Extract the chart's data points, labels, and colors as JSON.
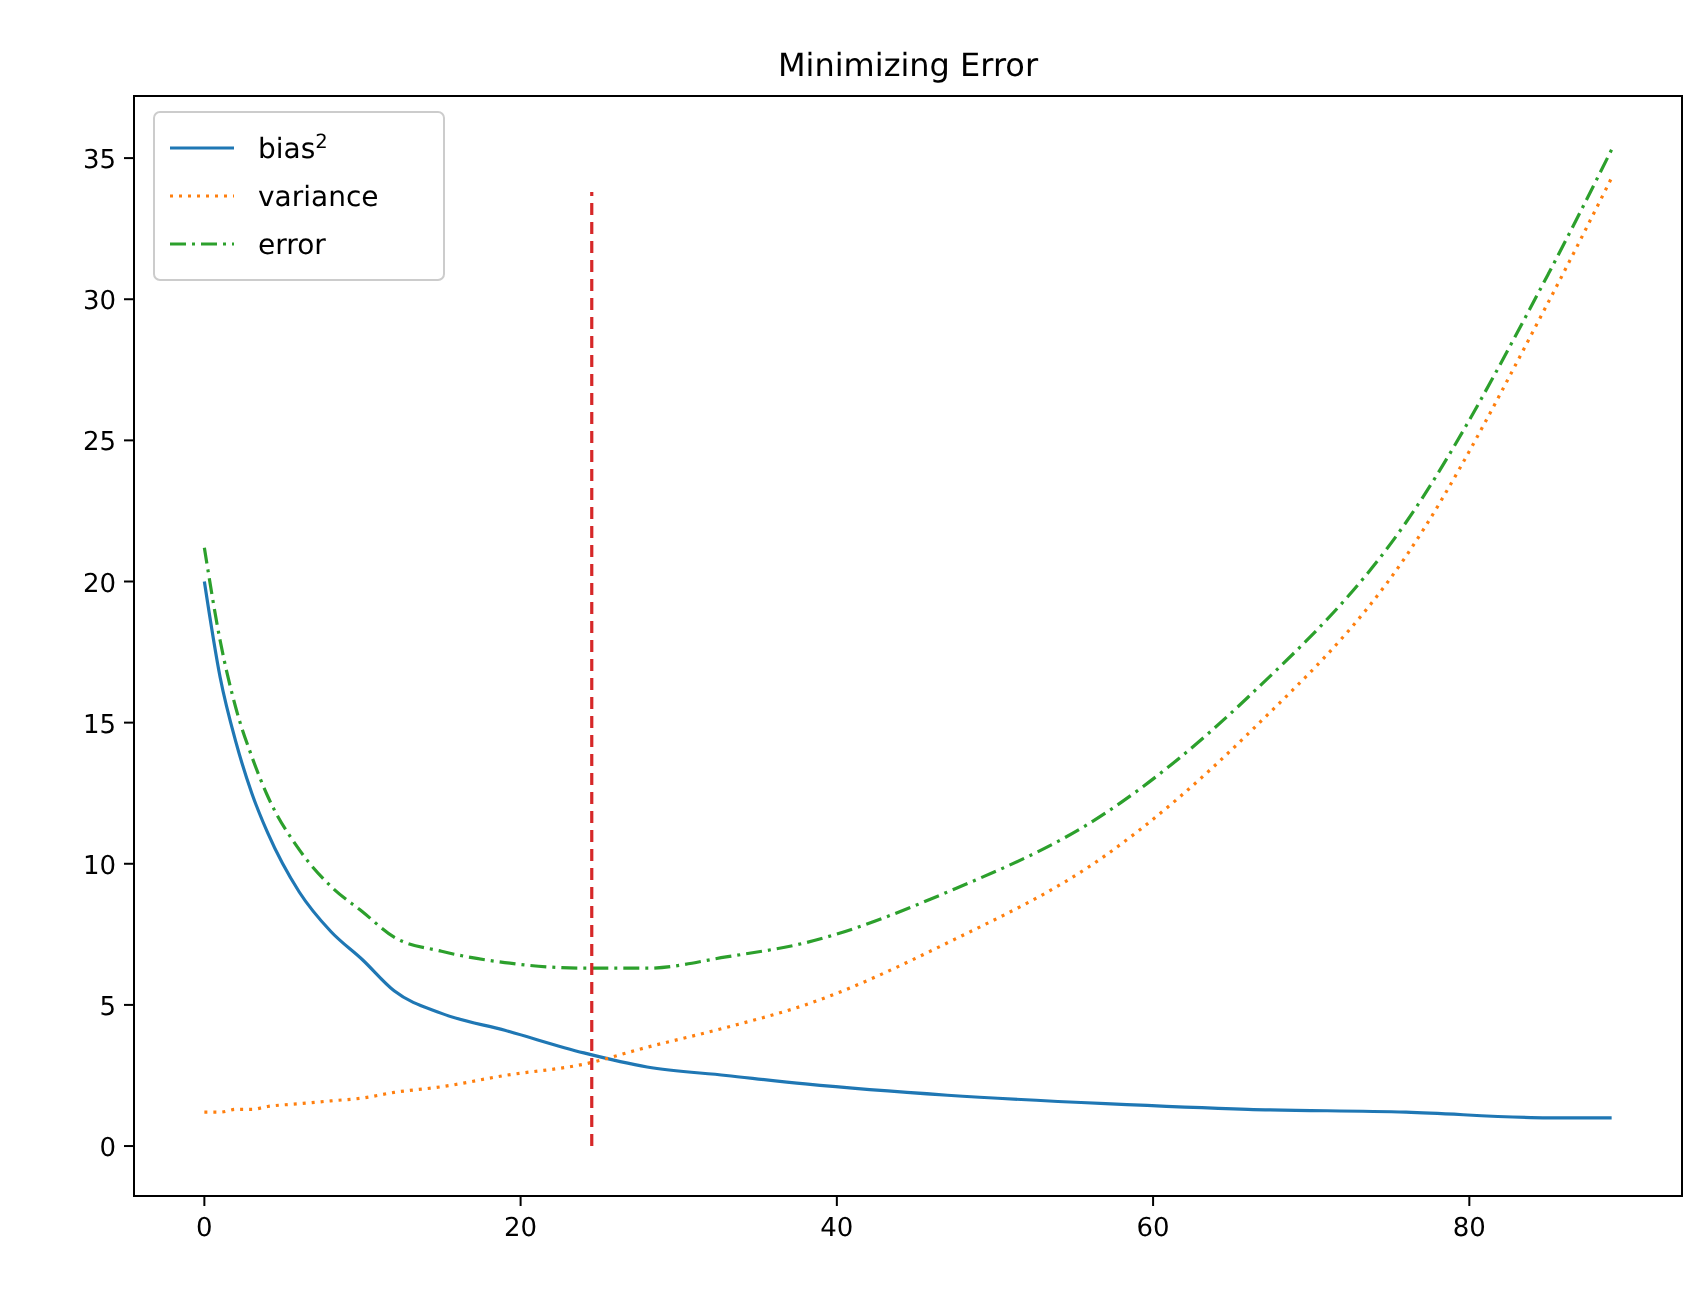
{
  "chart_data": {
    "type": "line",
    "title": "Minimizing Error",
    "xlim": [
      -4.45,
      93.45
    ],
    "ylim": [
      -1.77,
      37.2
    ],
    "xticks": [
      0,
      20,
      40,
      60,
      80
    ],
    "yticks": [
      0,
      5,
      10,
      15,
      20,
      25,
      30,
      35
    ],
    "grid": false,
    "legend": "top left",
    "series": [
      {
        "name": "bias$^{2}$",
        "color": "#1f77b4",
        "line_style": "solid",
        "x": [
          0,
          1,
          2,
          3,
          4,
          6,
          8,
          10,
          12,
          15,
          19,
          24,
          28,
          33,
          38,
          47,
          57,
          66,
          76,
          85,
          89
        ],
        "values": [
          20,
          16.6,
          14.3,
          12.5,
          11.1,
          9.0,
          7.6,
          6.6,
          5.5,
          4.7,
          4.1,
          3.3,
          2.8,
          2.5,
          2.2,
          1.8,
          1.5,
          1.3,
          1.2,
          1.0,
          1.0
        ]
      },
      {
        "name": "variance",
        "color": "#ff7f0e",
        "line_style": "dotted",
        "x": [
          0,
          1,
          2,
          3,
          4,
          6,
          8,
          10,
          12,
          15,
          19,
          24,
          28,
          33,
          38,
          47,
          57,
          66,
          76,
          85,
          89
        ],
        "values": [
          1.2,
          1.2,
          1.3,
          1.3,
          1.4,
          1.5,
          1.6,
          1.7,
          1.9,
          2.1,
          2.5,
          2.9,
          3.5,
          4.2,
          5.0,
          7.2,
          10.3,
          14.6,
          20.9,
          29.9,
          34.3
        ]
      },
      {
        "name": "error",
        "color": "#2ca02c",
        "line_style": "dashdot",
        "x": [
          0,
          1,
          2,
          3,
          4,
          6,
          8,
          10,
          12,
          15,
          19,
          24,
          28,
          33,
          38,
          47,
          57,
          66,
          76,
          85,
          89
        ],
        "values": [
          21.2,
          17.9,
          15.5,
          13.8,
          12.4,
          10.5,
          9.2,
          8.3,
          7.4,
          6.9,
          6.5,
          6.3,
          6.3,
          6.7,
          7.2,
          9.0,
          11.8,
          15.9,
          22.1,
          30.9,
          35.3
        ]
      },
      {
        "color": "#d62728",
        "line_style": "dashed",
        "x": [
          24.5,
          24.5
        ],
        "values": [
          0,
          33.8
        ]
      }
    ]
  }
}
